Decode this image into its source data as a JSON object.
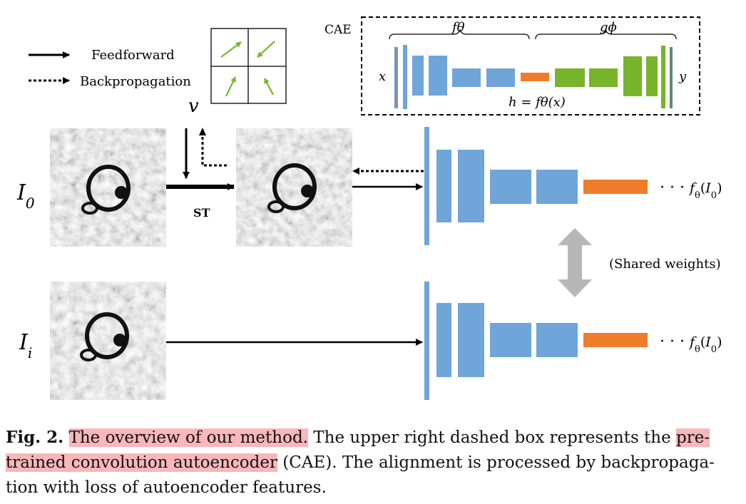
{
  "legend": {
    "feedforward": "Feedforward",
    "backpropagation": "Backpropagation"
  },
  "vector_field": {
    "label": "v"
  },
  "cae_box": {
    "title": "CAE",
    "encoder_label": "fθ",
    "decoder_label": "gϕ",
    "input_label": "x",
    "output_label": "y",
    "latent_label": "h = fθ(x)"
  },
  "inputs": {
    "reference_label": "I0",
    "target_label": "Ii",
    "transform_label": "ST"
  },
  "outputs": {
    "top_feature": "··· fθ(I0)",
    "bottom_feature": "··· fθ(I0)",
    "shared": "(Shared weights)"
  },
  "colors": {
    "encoder_blue": "#6fa5d8",
    "latent_orange": "#ee7d2b",
    "decoder_green": "#77b42a",
    "shared_arrow": "#b7b7b7",
    "caption_highlight": "#f9b6bb"
  },
  "caption": {
    "fig": "Fig. 2.",
    "hl1": "The overview of our method.",
    "t1": " The upper right dashed box represents the ",
    "hl2a": "pre-",
    "hl2b": "trained convolution autoencoder",
    "t2": " (CAE). The alignment is processed by backpropaga-",
    "t3": "tion with loss of autoencoder features."
  }
}
